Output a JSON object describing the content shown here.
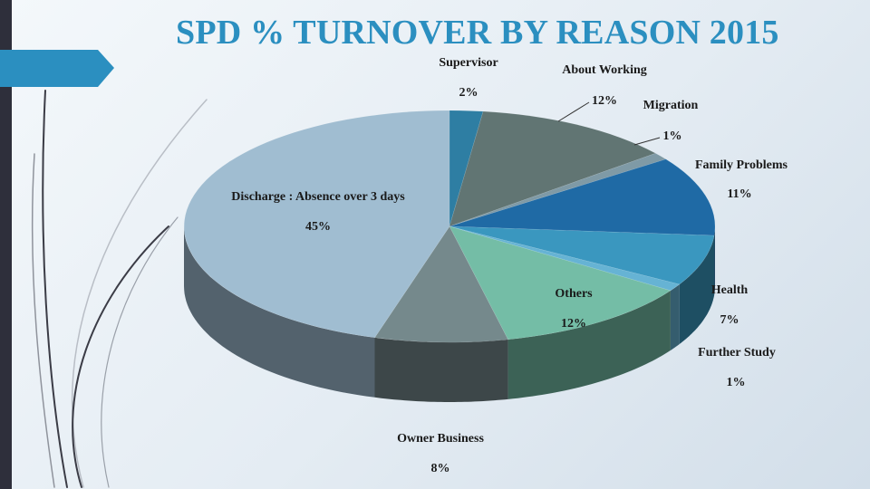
{
  "slide": {
    "title": "SPD % TURNOVER BY REASON 2015"
  },
  "chart_data": {
    "type": "pie",
    "title": "SPD % TURNOVER BY REASON 2015",
    "categories": [
      "Supervisor",
      "About Working",
      "Migration",
      "Family Problems",
      "Health",
      "Further Study",
      "Others",
      "Owner Business",
      "Discharge : Absence over 3 days"
    ],
    "values": [
      2,
      12,
      1,
      11,
      7,
      1,
      12,
      8,
      45
    ],
    "value_labels": [
      "2%",
      "12%",
      "1%",
      "11%",
      "7%",
      "1%",
      "12%",
      "8%",
      "45%"
    ],
    "colors": [
      "#2e7ea3",
      "#617573",
      "#7f9aa6",
      "#1f6aa5",
      "#3a97bf",
      "#66b3d4",
      "#74bda6",
      "#75898c",
      "#a0bdd1"
    ],
    "legend": "none",
    "style": "3d"
  }
}
